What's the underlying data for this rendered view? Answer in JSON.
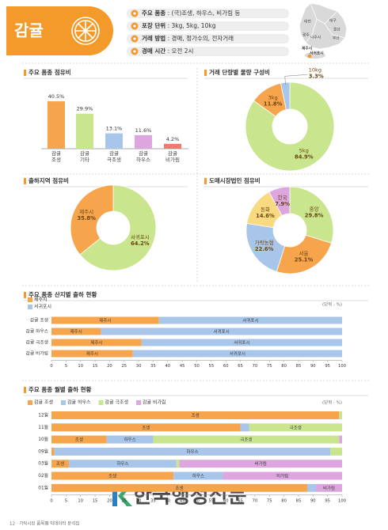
{
  "header": {
    "title": "감귤",
    "items": [
      {
        "label": "주요 품종",
        "value": " : (극)조생, 하우스, 비가림 등"
      },
      {
        "label": "포장 단위",
        "value": " : 3kg, 5kg, 10kg"
      },
      {
        "label": "거래 방법",
        "value": " : 경매, 정가수의, 전자거래"
      },
      {
        "label": "경매 시간",
        "value": " : 오전 2시"
      }
    ],
    "map_labels": [
      "대전",
      "대구",
      "광주",
      "울산",
      "나주시",
      "부산",
      "제주시",
      "서귀포시"
    ]
  },
  "chart_data": [
    {
      "type": "bar",
      "title": "주요 품종 점유비",
      "categories": [
        "감귤 조생",
        "감귤 기타",
        "감귤 극조생",
        "감귤 하우스",
        "감귤 비가림"
      ],
      "values": [
        40.5,
        29.9,
        13.1,
        11.6,
        4.2
      ],
      "value_labels": [
        "40.5%",
        "29.9%",
        "13.1%",
        "11.6%",
        "4.2%"
      ],
      "colors": [
        "#f6a54c",
        "#c9e58e",
        "#a8c5ea",
        "#dea6df",
        "#f07a70"
      ]
    },
    {
      "type": "pie",
      "title": "거래 단량별 물량 구성비",
      "categories": [
        "5kg",
        "3kg",
        "10kg"
      ],
      "values": [
        84.9,
        11.8,
        3.3
      ],
      "value_labels": [
        "84.9%",
        "11.8%",
        "3.3%"
      ],
      "colors": [
        "#c9e58e",
        "#f6a54c",
        "#a8c5ea"
      ]
    },
    {
      "type": "pie",
      "title": "출하지역 점유비",
      "categories": [
        "서귀포시",
        "제주시"
      ],
      "values": [
        64.2,
        35.8
      ],
      "value_labels": [
        "64.2%",
        "35.8%"
      ],
      "colors": [
        "#c9e58e",
        "#f6a54c"
      ]
    },
    {
      "type": "pie",
      "title": "도매시장법인 점유비",
      "categories": [
        "중앙",
        "서울",
        "가락농협",
        "동화",
        "한국"
      ],
      "values": [
        29.8,
        25.1,
        22.6,
        14.6,
        7.9
      ],
      "value_labels": [
        "29.8%",
        "25.1%",
        "22.6%",
        "14.6%",
        "7.9%"
      ],
      "colors": [
        "#c9e58e",
        "#f6a54c",
        "#a8c5ea",
        "#f8da80",
        "#dea6df"
      ]
    },
    {
      "type": "stacked_barh",
      "title": "주요 품종 산지별 출하 현황",
      "unit_label": "(단위 : %)",
      "categories": [
        "감귤 조생",
        "감귤 하우스",
        "감귤 극조생",
        "감귤 비가림"
      ],
      "series": [
        {
          "name": "제주시",
          "color": "#f6a54c",
          "values": [
            37,
            17,
            31,
            28
          ]
        },
        {
          "name": "서귀포시",
          "color": "#a8c5ea",
          "values": [
            63,
            83,
            69,
            72
          ]
        }
      ],
      "xlim": [
        0,
        100
      ],
      "xticks": [
        0,
        5,
        10,
        15,
        20,
        25,
        30,
        35,
        40,
        45,
        50,
        55,
        60,
        65,
        70,
        75,
        80,
        85,
        90,
        95,
        100
      ],
      "legend": "top-left"
    },
    {
      "type": "stacked_barh",
      "title": "주요 품종 월별 출하 현황",
      "unit_label": "(단위 : %)",
      "categories": [
        "12월",
        "11월",
        "10월",
        "09월",
        "03월",
        "02월",
        "01월"
      ],
      "series": [
        {
          "name": "감귤 조생",
          "label": "조생",
          "color": "#f6a54c",
          "values": [
            99,
            65,
            19,
            1,
            6,
            42,
            88
          ]
        },
        {
          "name": "감귤 하우스",
          "label": "하우스",
          "color": "#a8c5ea",
          "values": [
            0,
            3,
            16,
            95,
            37,
            17,
            3
          ]
        },
        {
          "name": "감귤 극조생",
          "label": "극조생",
          "color": "#c9e58e",
          "values": [
            1,
            32,
            64,
            4,
            1,
            0,
            0
          ]
        },
        {
          "name": "감귤 비가림",
          "label": "비가림",
          "color": "#dea6df",
          "values": [
            0,
            0,
            1,
            0,
            56,
            41,
            9
          ]
        }
      ],
      "xlim": [
        0,
        100
      ],
      "xticks": [
        0,
        5,
        10,
        15,
        20,
        25,
        30,
        35,
        40,
        45,
        50,
        55,
        60,
        65,
        70,
        75,
        80,
        85,
        90,
        95,
        100
      ],
      "legend": "top-left"
    }
  ],
  "footer": "12 · 가락시장 품목별 빅데이터 분석집",
  "watermark": "한국행정신문"
}
